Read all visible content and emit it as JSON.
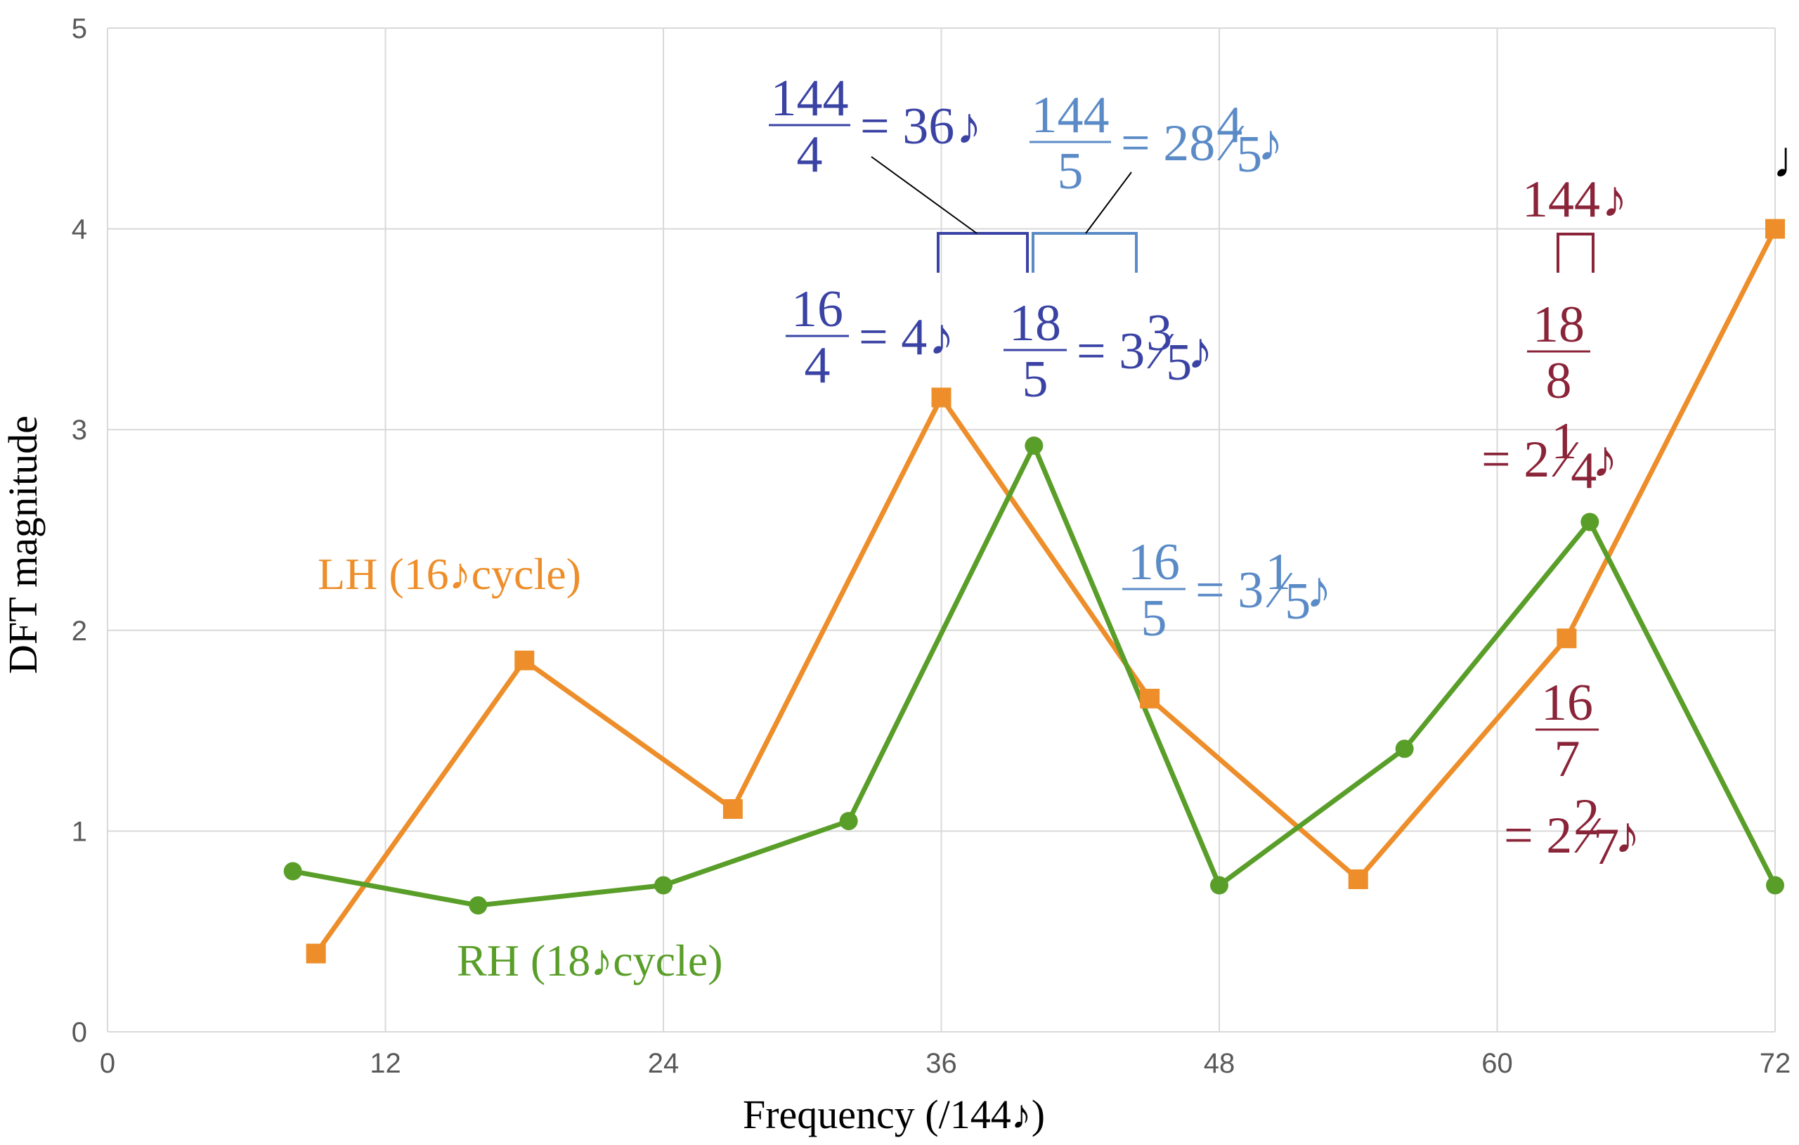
{
  "chart_data": {
    "type": "line",
    "xlabel": "Frequency (/144♪)",
    "ylabel": "DFT magnitude",
    "xlim": [
      0,
      72
    ],
    "ylim": [
      0,
      5
    ],
    "x_ticks": [
      "0",
      "12",
      "24",
      "36",
      "48",
      "60",
      "72"
    ],
    "y_ticks": [
      "0",
      "1",
      "2",
      "3",
      "4",
      "5"
    ],
    "grid": true,
    "series": [
      {
        "name": "LH (16♪cycle)",
        "color": "#ED8E2A",
        "marker": "square",
        "x": [
          9,
          18,
          27,
          36,
          45,
          54,
          63,
          72
        ],
        "y": [
          0.39,
          1.85,
          1.11,
          3.16,
          1.66,
          0.76,
          1.96,
          4.0
        ]
      },
      {
        "name": "RH (18♪cycle)",
        "color": "#5A9E2A",
        "marker": "circle",
        "x": [
          8,
          16,
          24,
          32,
          40,
          48,
          56,
          64,
          72
        ],
        "y": [
          0.8,
          0.63,
          0.73,
          1.05,
          2.92,
          0.73,
          1.41,
          2.54,
          0.73
        ]
      }
    ],
    "annotations": {
      "a144_4": {
        "num": "144",
        "den": "4",
        "rest": "= 36",
        "color": "#3A43A4"
      },
      "a144_5": {
        "num": "144",
        "den": "5",
        "rest": "= 28",
        "frac_n": "4",
        "frac_d": "5",
        "color": "#5B8BC7"
      },
      "a16_4": {
        "num": "16",
        "den": "4",
        "rest": "= 4",
        "color": "#3A43A4"
      },
      "a18_5": {
        "num": "18",
        "den": "5",
        "rest": "= 3",
        "frac_n": "3",
        "frac_d": "5",
        "color": "#3A43A4"
      },
      "a16_5": {
        "num": "16",
        "den": "5",
        "rest": "= 3",
        "frac_n": "1",
        "frac_d": "5",
        "color": "#5B8BC7"
      },
      "a144": {
        "text": "144",
        "color": "#8A2438"
      },
      "a18_8": {
        "num": "18",
        "den": "8",
        "rest": "= 2",
        "frac_n": "1",
        "frac_d": "4",
        "color": "#8A2438"
      },
      "a16_7": {
        "num": "16",
        "den": "7",
        "rest": "= 2",
        "frac_n": "2",
        "frac_d": "7",
        "color": "#8A2438"
      }
    },
    "note_symbols": {
      "eighth": "♪",
      "quarter": "♩"
    }
  }
}
